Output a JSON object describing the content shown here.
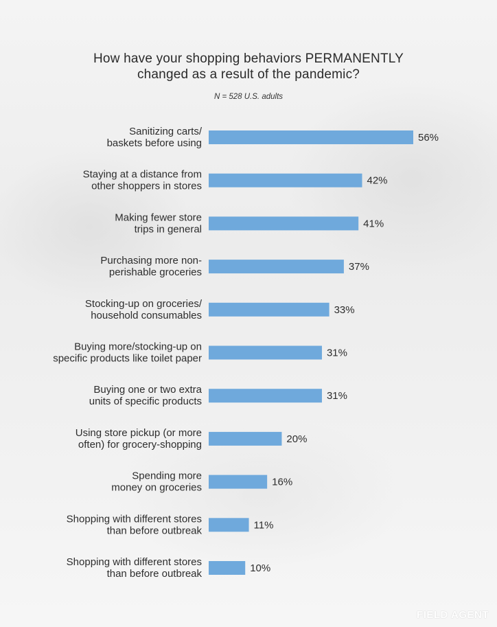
{
  "chart_data": {
    "type": "bar",
    "orientation": "horizontal",
    "title": "How have your shopping behaviors PERMANENTLY changed as a result of the pandemic?",
    "title_lines": [
      "How have your shopping behaviors PERMANENTLY",
      "changed as a result of the pandemic?"
    ],
    "subtitle": "N = 528 U.S. adults",
    "categories": [
      [
        "Sanitizing carts/",
        "baskets before using"
      ],
      [
        "Staying at a distance from",
        "other shoppers in stores"
      ],
      [
        "Making fewer store",
        "trips in general"
      ],
      [
        "Purchasing more non-",
        "perishable groceries"
      ],
      [
        "Stocking-up on groceries/",
        "household consumables"
      ],
      [
        "Buying more/stocking-up on",
        "specific products like toilet paper"
      ],
      [
        "Buying one or two extra",
        "units of specific products"
      ],
      [
        "Using store pickup (or more",
        "often) for grocery-shopping"
      ],
      [
        "Spending more",
        "money on groceries"
      ],
      [
        "Shopping with different stores",
        "than before outbreak"
      ],
      [
        "Shopping with different stores",
        "than before outbreak"
      ]
    ],
    "values": [
      56,
      42,
      41,
      37,
      33,
      31,
      31,
      20,
      16,
      11,
      10
    ],
    "value_labels": [
      "56%",
      "42%",
      "41%",
      "37%",
      "33%",
      "31%",
      "31%",
      "20%",
      "16%",
      "11%",
      "10%"
    ],
    "unit": "%",
    "xlim": [
      0,
      56
    ],
    "grid": false,
    "legend": "none",
    "bar_color": "#6fa9dc"
  },
  "logo_text": "FIELD AGENT"
}
